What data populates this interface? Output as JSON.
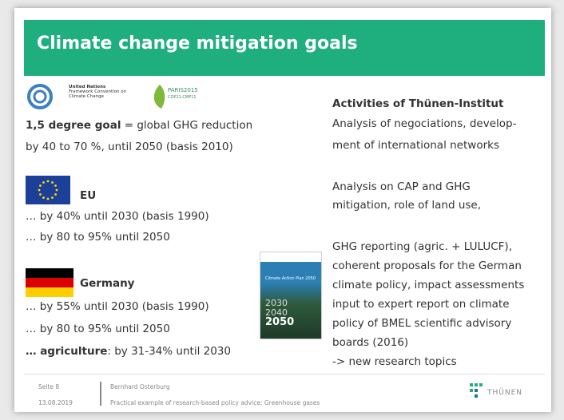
{
  "header": {
    "title": "Climate change mitigation goals"
  },
  "logos": {
    "unfccc": [
      "United Nations",
      "Framework Convention on",
      "Climate Change"
    ],
    "paris": [
      "PARIS2015",
      "COP21·CMP11"
    ]
  },
  "left": {
    "goal": {
      "bold": "1,5 degree goal",
      "text": " = global GHG reduction",
      "line2": "by 40 to 70 %, until 2050 (basis 2010)"
    },
    "eu": {
      "label": "EU",
      "lines": [
        "… by 40% until 2030 (basis 1990)",
        "… by 80 to 95% until 2050"
      ]
    },
    "germany": {
      "label": "Germany",
      "lines": [
        "… by 55% until 2030 (basis 1990)",
        "… by 80 to 95% until 2050"
      ],
      "agriculture": {
        "bold": "… agriculture",
        "text": ":  by 31-34% until 2030"
      }
    }
  },
  "book": {
    "title": "Climate Action Plan 2050",
    "years": [
      "2030",
      "2040",
      "2050"
    ]
  },
  "right": {
    "heading": "Activities of Thünen-Institut",
    "blocks": [
      [
        "Analysis of negociations, develop-",
        "ment of international networks"
      ],
      [
        "Analysis on CAP and GHG",
        "mitigation, role of land use,"
      ],
      [
        "GHG reporting (agric. + LULUCF),",
        "coherent proposals for the German",
        "climate policy, impact assessments",
        "input to expert report on climate",
        "policy of BMEL scientific advisory",
        "boards (2016)",
        "-> new research topics"
      ]
    ]
  },
  "footer": {
    "page": "Seite 8",
    "date": "13.08.2019",
    "author": "Bernhard Osterburg",
    "subtitle": "Practical example of research-based  policy advice:  Greenhouse gases",
    "logo": "THÜNEN"
  }
}
